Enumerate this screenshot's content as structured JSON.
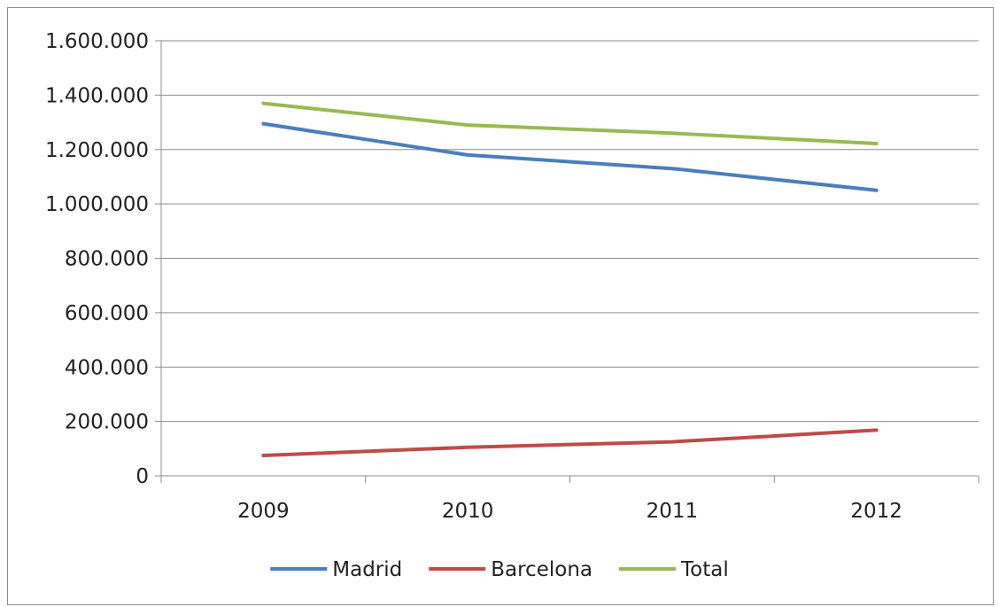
{
  "chart_data": {
    "type": "line",
    "categories": [
      "2009",
      "2010",
      "2011",
      "2012"
    ],
    "ylim": [
      0,
      1600000
    ],
    "y_ticks": [
      0,
      200000,
      400000,
      600000,
      800000,
      1000000,
      1200000,
      1400000,
      1600000
    ],
    "y_tick_labels": [
      "0",
      "200.000",
      "400.000",
      "600.000",
      "800.000",
      "1.000.000",
      "1.200.000",
      "1.400.000",
      "1.600.000"
    ],
    "grid": true,
    "legend_position": "bottom",
    "title": "",
    "xlabel": "",
    "ylabel": "",
    "series": [
      {
        "name": "Madrid",
        "color": "#4a7ebb",
        "values": [
          1295000,
          1180000,
          1130000,
          1050000
        ]
      },
      {
        "name": "Barcelona",
        "color": "#be4b48",
        "values": [
          75000,
          105000,
          125000,
          168000
        ]
      },
      {
        "name": "Total",
        "color": "#98b954",
        "values": [
          1370000,
          1290000,
          1260000,
          1222000
        ]
      }
    ]
  }
}
